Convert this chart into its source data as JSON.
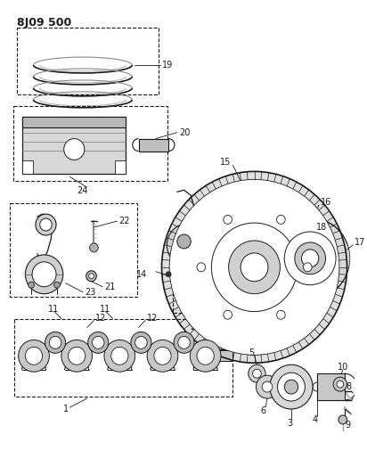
{
  "title": "8J09 500",
  "bg_color": "#ffffff",
  "line_color": "#1a1a1a",
  "fig_width": 4.12,
  "fig_height": 5.33,
  "dpi": 100,
  "gray_light": "#c8c8c8",
  "gray_mid": "#a0a0a0",
  "gray_dark": "#707070",
  "white": "#ffffff"
}
